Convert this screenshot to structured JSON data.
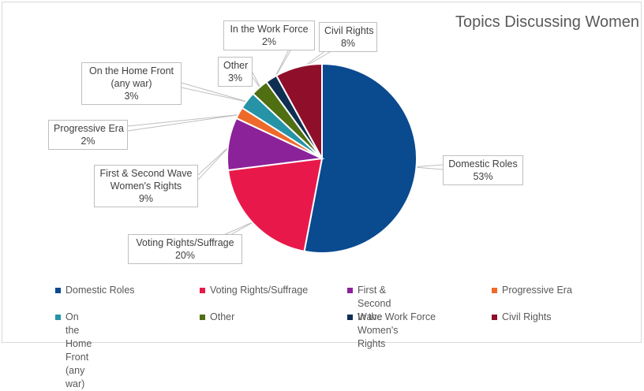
{
  "chart_data": {
    "type": "pie",
    "title": "Topics Discussing Women",
    "categories": [
      "Domestic Roles",
      "Voting Rights/Suffrage",
      "First & Second Wave Women's Rights",
      "Progressive Era",
      "On the Home Front (any war)",
      "Other",
      "In the Work Force",
      "Civil Rights"
    ],
    "values": [
      53,
      20,
      9,
      2,
      3,
      3,
      2,
      8
    ],
    "unit": "%",
    "colors": [
      "#0a4a8f",
      "#e8194a",
      "#8b2299",
      "#ee6a2b",
      "#2694a6",
      "#4f6f12",
      "#0f2f52",
      "#8f0f2b"
    ],
    "legend_position": "bottom",
    "start_angle": "12 o'clock, clockwise"
  },
  "title": "Topics Discussing Women",
  "labels": [
    {
      "lines": [
        "Domestic Roles",
        "53%"
      ]
    },
    {
      "lines": [
        "Voting Rights/Suffrage",
        "20%"
      ]
    },
    {
      "lines": [
        "First & Second Wave",
        "Women's Rights",
        "9%"
      ]
    },
    {
      "lines": [
        "Progressive Era",
        "2%"
      ]
    },
    {
      "lines": [
        "On the Home Front",
        "(any war)",
        "3%"
      ]
    },
    {
      "lines": [
        "Other",
        "3%"
      ]
    },
    {
      "lines": [
        "In the Work Force",
        "2%"
      ]
    },
    {
      "lines": [
        "Civil Rights",
        "8%"
      ]
    }
  ],
  "legend": [
    {
      "label": "Domestic Roles",
      "color": "#0a4a8f"
    },
    {
      "label": "Voting Rights/Suffrage",
      "color": "#e8194a"
    },
    {
      "label": "First & Second Wave\nWomen's Rights",
      "color": "#8b2299"
    },
    {
      "label": "Progressive Era",
      "color": "#ee6a2b"
    },
    {
      "label": "On the Home Front\n(any war)",
      "color": "#2694a6"
    },
    {
      "label": "Other",
      "color": "#4f6f12"
    },
    {
      "label": "In the Work Force",
      "color": "#0f2f52"
    },
    {
      "label": "Civil Rights",
      "color": "#8f0f2b"
    }
  ]
}
